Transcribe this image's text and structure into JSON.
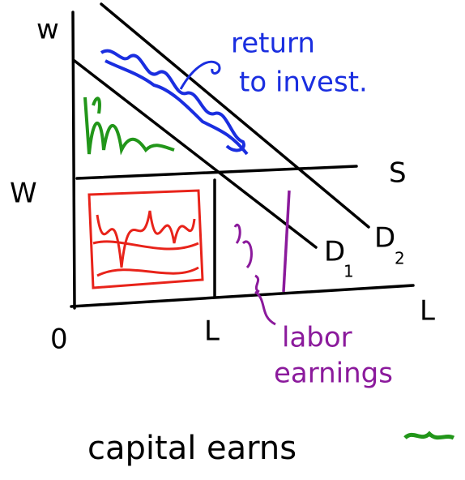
{
  "labels": {
    "y_axis": "w",
    "wage": "W",
    "origin": "0",
    "quantity": "L",
    "x_axis": "L",
    "supply": "S",
    "demand_1": "D",
    "demand_1_sub": "1",
    "demand_2": "D",
    "demand_2_sub": "2",
    "return_line1": "return",
    "return_line2": "to invest.",
    "labor_line1": "labor",
    "labor_line2": "earnings",
    "capital": "capital earns"
  }
}
